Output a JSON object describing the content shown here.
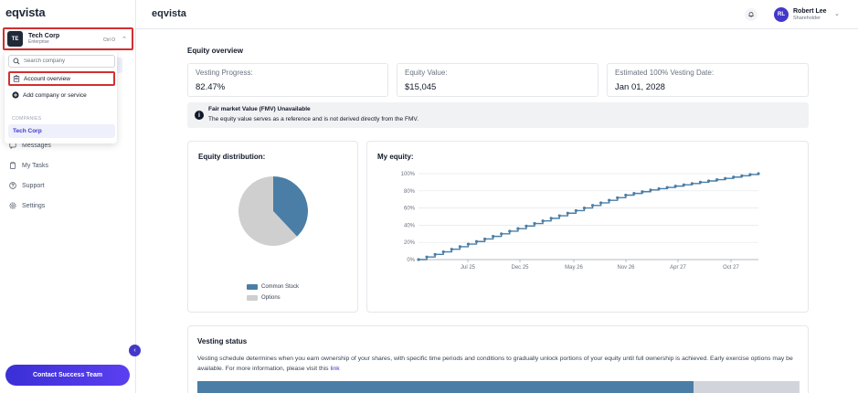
{
  "sidebar": {
    "logo": "eqvista",
    "company": {
      "avatar": "TE",
      "name": "Tech Corp",
      "plan": "Enterprise",
      "shortcut": "Ctrl O"
    },
    "dropdown": {
      "search_placeholder": "Search company",
      "account_overview": "Account overview",
      "add_company": "Add company or service",
      "section_label": "COMPANIES",
      "companies": [
        "Tech Corp"
      ]
    },
    "nav": [
      {
        "label": "Messages",
        "icon": "message-icon"
      },
      {
        "label": "My Tasks",
        "icon": "clipboard-icon"
      },
      {
        "label": "Support",
        "icon": "help-icon"
      },
      {
        "label": "Settings",
        "icon": "gear-icon"
      }
    ],
    "collapse_icon": "chevron-left-icon",
    "contact_button": "Contact Success Team"
  },
  "header": {
    "logo": "eqvista",
    "user": {
      "initials": "RL",
      "name": "Robert Lee",
      "role": "Shareholder"
    }
  },
  "main": {
    "title": "Equity overview",
    "stats": [
      {
        "label": "Vesting Progress:",
        "value": "82.47%"
      },
      {
        "label": "Equity Value:",
        "value": "$15,045"
      },
      {
        "label": "Estimated 100% Vesting Date:",
        "value": "Jan 01, 2028"
      }
    ],
    "fmv": {
      "title": "Fair market Value (FMV) Unavailable",
      "text": "The equity value serves as a reference and is not derived directly from the FMV."
    },
    "distribution": {
      "title": "Equity distribution:"
    },
    "my_equity": {
      "title": "My equity:"
    },
    "vesting": {
      "title": "Vesting status",
      "text": "Vesting schedule determines when you earn ownership of your shares, with specific time periods and conditions to gradually unlock portions of your equity until full ownership is achieved. Early exercise options may be available. For more information, please visit this",
      "link": "link",
      "progress": 0.8247
    }
  },
  "colors": {
    "accent": "#4338ca",
    "common_stock": "#4a7ea6",
    "options": "#cfcfcf",
    "highlight_border": "#d32f2f"
  },
  "chart_data": [
    {
      "type": "pie",
      "title": "Equity distribution:",
      "legend": [
        "Common Stock",
        "Options"
      ],
      "values": [
        38,
        62
      ],
      "legend_position": "bottom"
    },
    {
      "type": "line",
      "title": "My equity:",
      "x_ticks": [
        "Jul 25",
        "Dec 25",
        "May 26",
        "Nov 26",
        "Apr 27",
        "Oct 27"
      ],
      "y_ticks": [
        "0%",
        "20%",
        "40%",
        "60%",
        "80%",
        "100%"
      ],
      "ylim": [
        0,
        100
      ],
      "step": true,
      "y": [
        0,
        3,
        6,
        9,
        12,
        15,
        18,
        21,
        24,
        27,
        30,
        33,
        36,
        39,
        42,
        45,
        48,
        51,
        54,
        57,
        60,
        63,
        66,
        69,
        72,
        75,
        77,
        79,
        81,
        82.5,
        84,
        85.5,
        87,
        88.5,
        90,
        91.5,
        93,
        94.5,
        96,
        97.5,
        99,
        100
      ]
    }
  ]
}
